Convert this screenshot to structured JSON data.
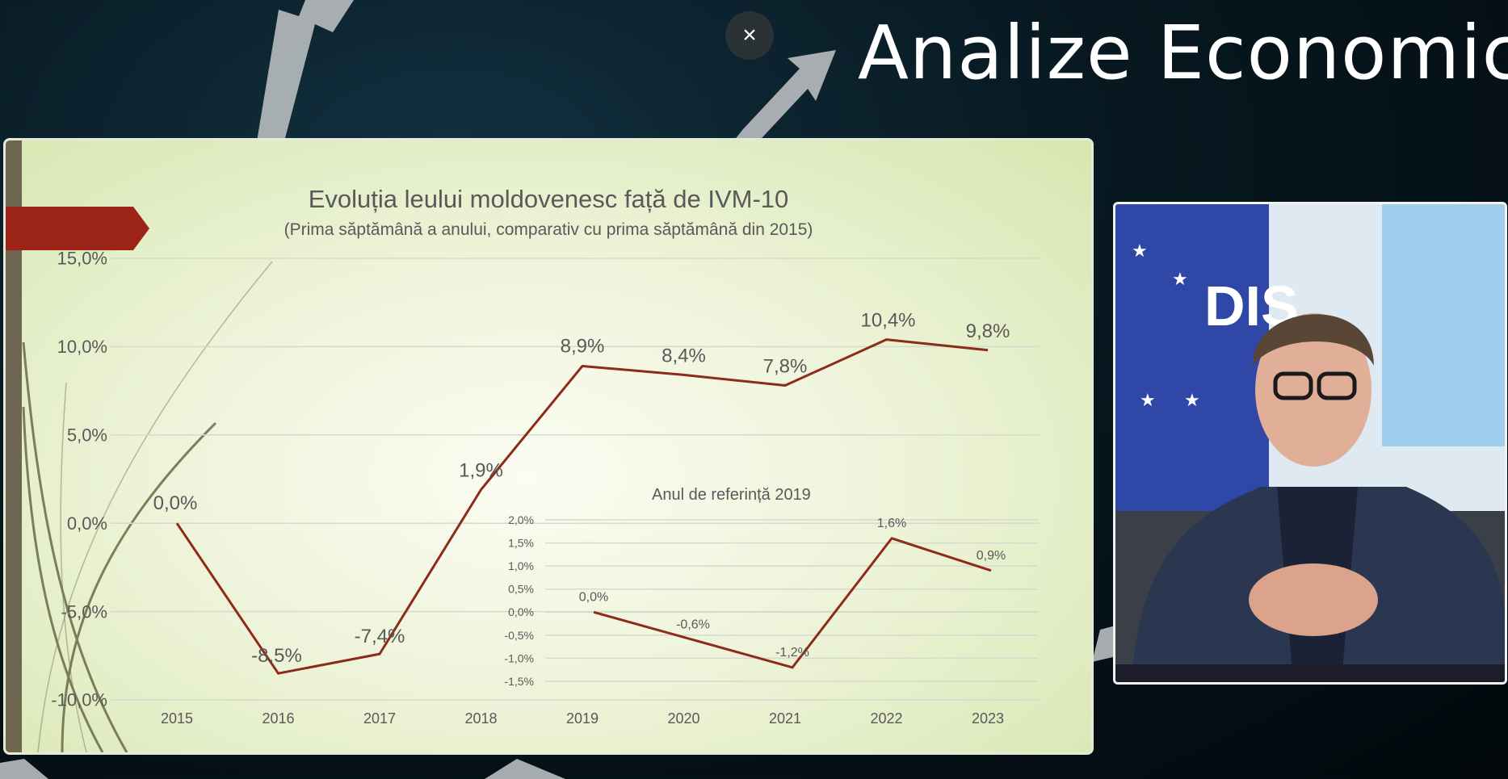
{
  "header": {
    "brand_title": "Analize Economice",
    "close_glyph": "×"
  },
  "slide": {
    "title": "Evoluția leului moldovenesc față de IVM-10",
    "subtitle": "(Prima săptămână a anului, comparativ cu prima săptămână din 2015)",
    "inset_title": "Anul de referință 2019"
  },
  "colors": {
    "series_line": "#8e2a1a",
    "accent_tab": "#9b2416",
    "sidebar_bar": "#6e6650",
    "gridline": "#d6d9ce",
    "axis_text": "#595959"
  },
  "chart_data": [
    {
      "type": "line",
      "title": "Evoluția leului moldovenesc față de IVM-10",
      "subtitle": "(Prima săptămână a anului, comparativ cu prima săptămână din 2015)",
      "categories": [
        "2015",
        "2016",
        "2017",
        "2018",
        "2019",
        "2020",
        "2021",
        "2022",
        "2023"
      ],
      "series": [
        {
          "values": [
            0.0,
            -8.5,
            -7.4,
            1.9,
            8.9,
            8.4,
            7.8,
            10.4,
            9.8
          ]
        }
      ],
      "data_labels": [
        "0,0%",
        "-8,5%",
        "-7,4%",
        "1,9%",
        "8,9%",
        "8,4%",
        "7,8%",
        "10,4%",
        "9,8%"
      ],
      "y_ticks": [
        "15,0%",
        "10,0%",
        "5,0%",
        "0,0%",
        "-5,0%",
        "-10,0%"
      ],
      "y_tick_values": [
        15,
        10,
        5,
        0,
        -5,
        -10
      ],
      "ylim": [
        -10,
        15
      ],
      "grid": true,
      "legend": "none"
    },
    {
      "type": "line",
      "title": "Anul de referință 2019",
      "categories": [
        "2019",
        "2020",
        "2021",
        "2022",
        "2023"
      ],
      "series": [
        {
          "values": [
            0.0,
            -0.6,
            -1.2,
            1.6,
            0.9
          ]
        }
      ],
      "data_labels": [
        "0,0%",
        "-0,6%",
        "-1,2%",
        "1,6%",
        "0,9%"
      ],
      "y_ticks": [
        "2,0%",
        "1,5%",
        "1,0%",
        "0,5%",
        "0,0%",
        "-0,5%",
        "-1,0%",
        "-1,5%"
      ],
      "y_tick_values": [
        2.0,
        1.5,
        1.0,
        0.5,
        0.0,
        -0.5,
        -1.0,
        -1.5
      ],
      "ylim": [
        -1.5,
        2.0
      ],
      "grid": true,
      "legend": "none"
    }
  ]
}
